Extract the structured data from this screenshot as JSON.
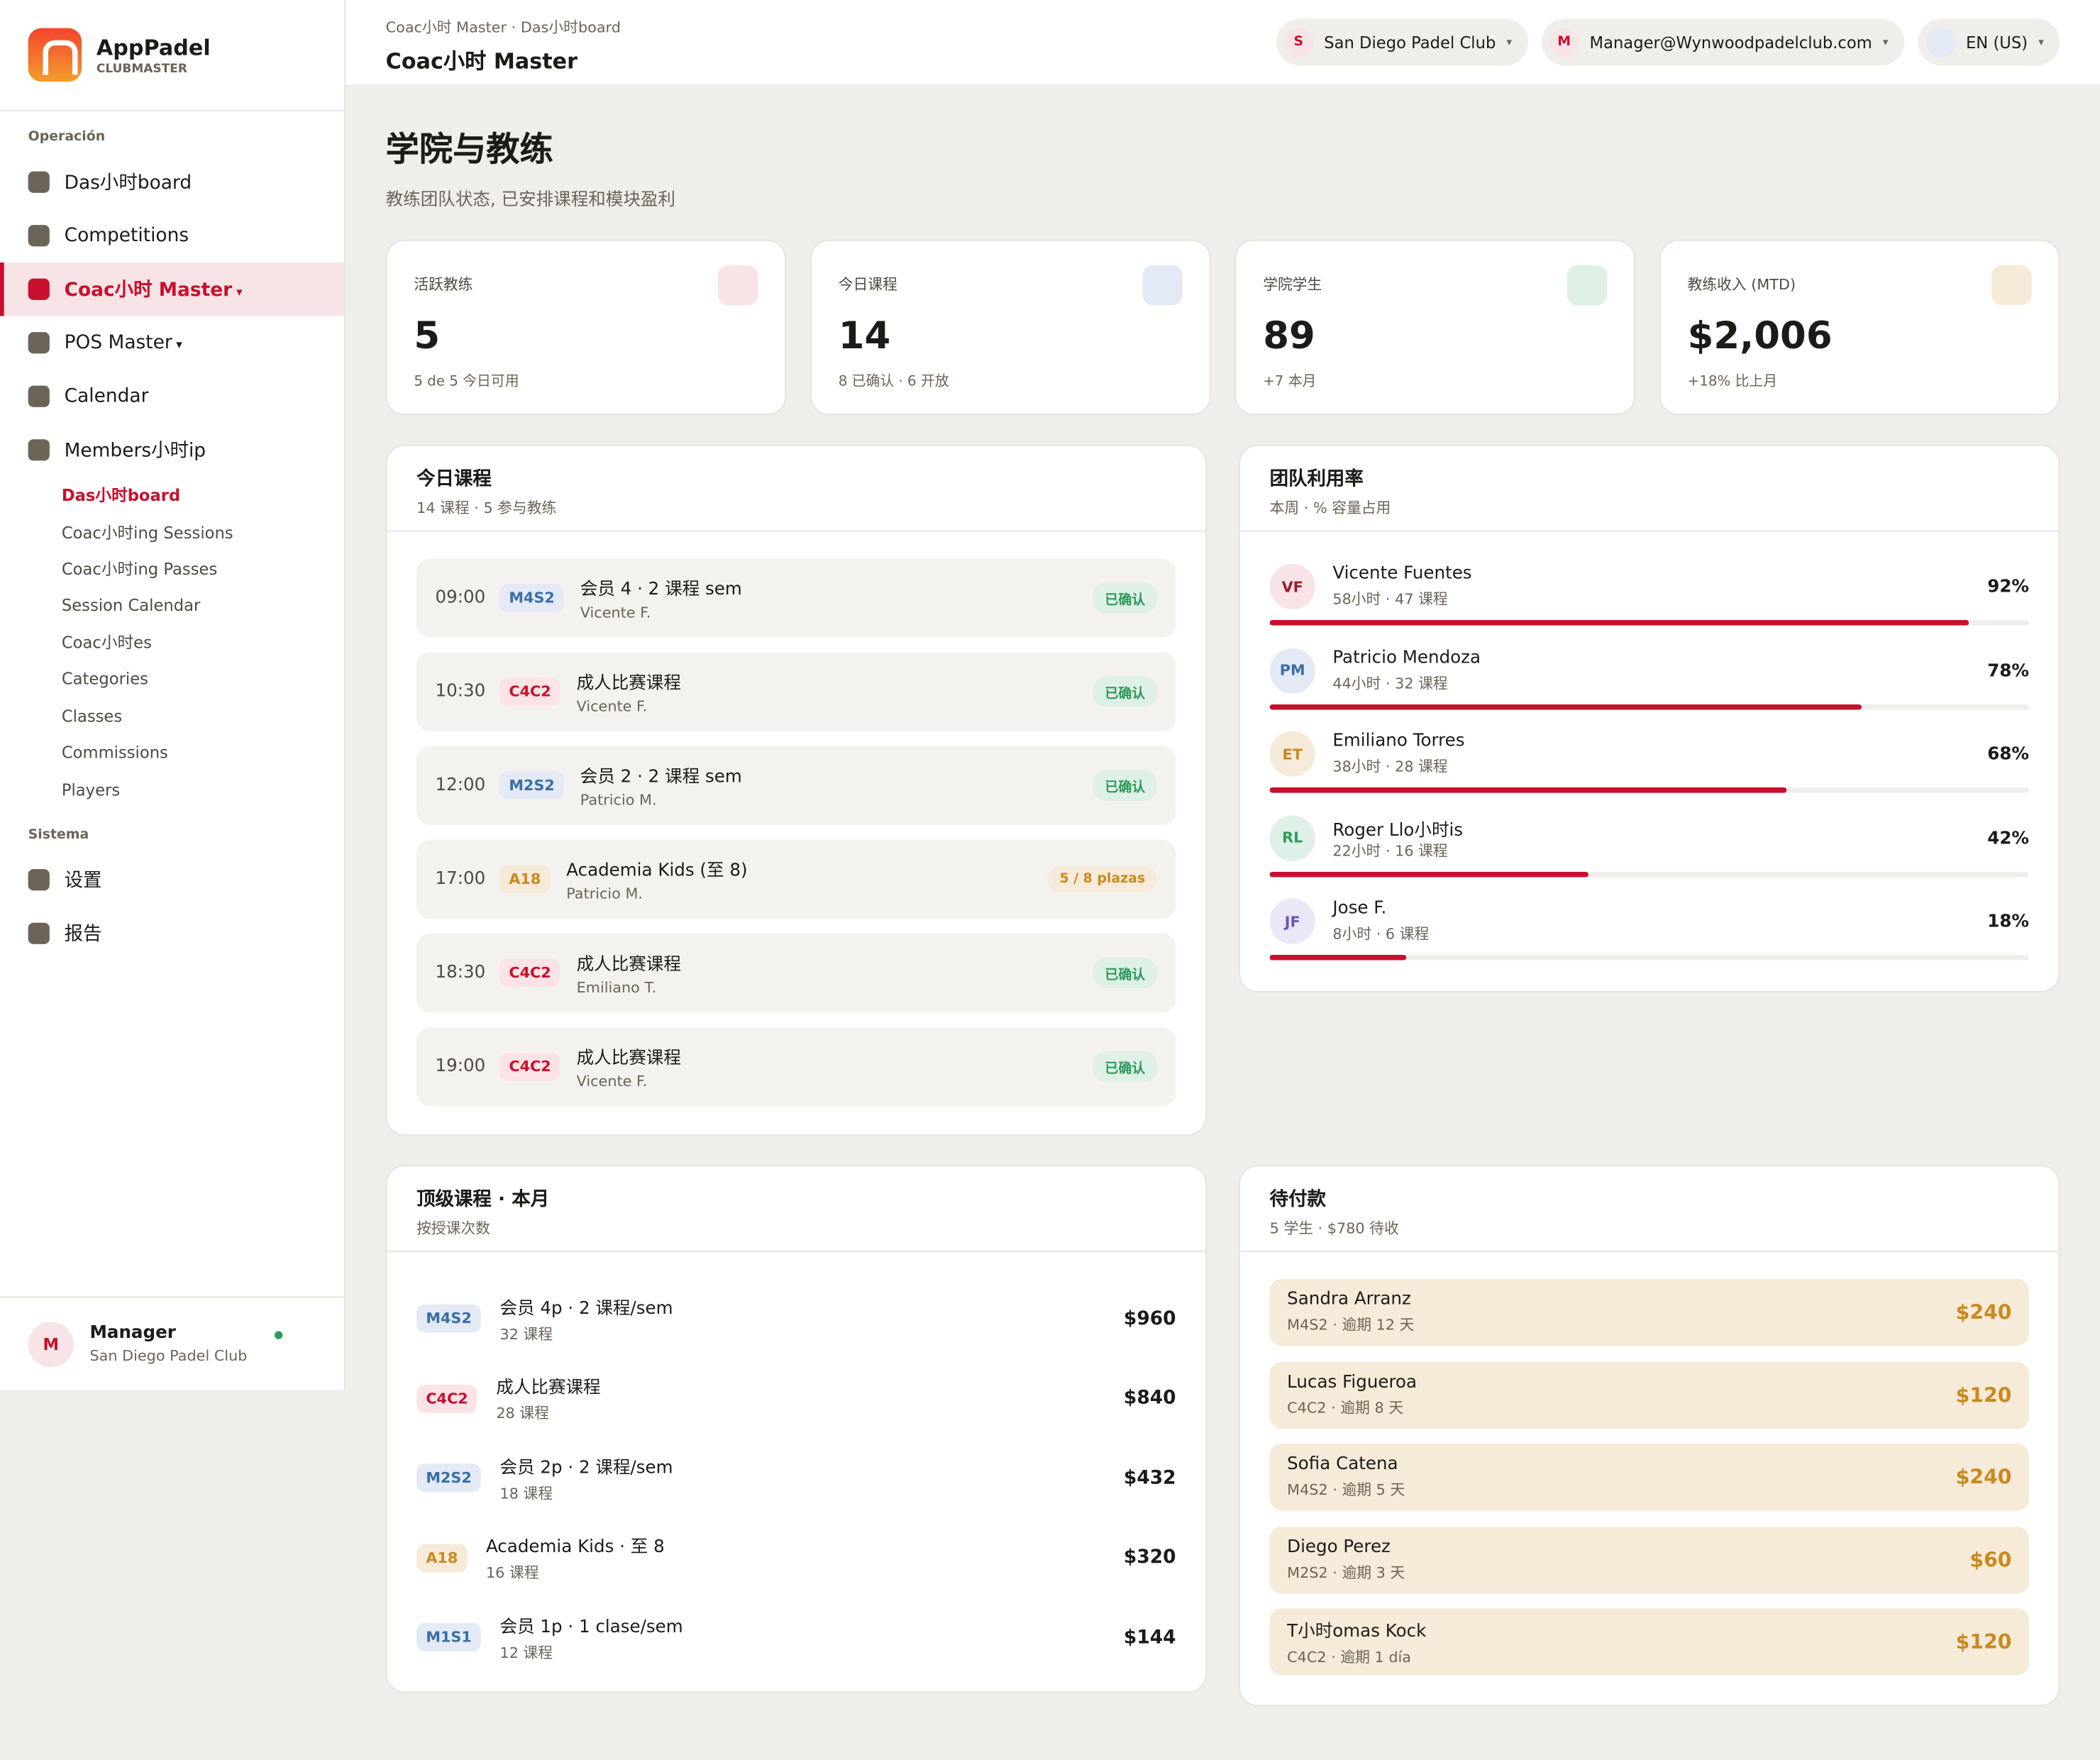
{
  "brand": {
    "name": "AppPadel",
    "tagline": "CLUBMASTER"
  },
  "header": {
    "breadcrumb": "Coac小时 Master · Das小时board",
    "title": "Coac小时 Master",
    "pills": [
      {
        "initial": "S",
        "label": "San Diego Padel Club"
      },
      {
        "initial": "M",
        "label": "Manager@Wynwoodpadelclub.com"
      },
      {
        "initial": "",
        "label": "EN (US)"
      }
    ]
  },
  "sidebar": {
    "sections": [
      {
        "title": "Operación",
        "items": [
          {
            "label": "Das小时board"
          },
          {
            "label": "Competitions"
          },
          {
            "label": "Coac小时 Master",
            "active": true,
            "caret": true
          },
          {
            "label": "POS Master",
            "caret": true
          },
          {
            "label": "Calendar"
          },
          {
            "label": "Members小时ip"
          }
        ],
        "subitems": [
          {
            "label": "Das小时board",
            "active": true
          },
          {
            "label": "Coac小时ing Sessions"
          },
          {
            "label": "Coac小时ing Passes"
          },
          {
            "label": "Session Calendar"
          },
          {
            "label": "Coac小时es"
          },
          {
            "label": "Categories"
          },
          {
            "label": "Classes"
          },
          {
            "label": "Commissions"
          },
          {
            "label": "Players"
          }
        ]
      },
      {
        "title": "Sistema",
        "items": [
          {
            "label": "设置"
          },
          {
            "label": "报告"
          }
        ],
        "subitems": []
      }
    ],
    "user": {
      "initial": "M",
      "name": "Manager",
      "club": "San Diego Padel Club"
    }
  },
  "page": {
    "title": "学院与教练",
    "subtitle": "教练团队状态, 已安排课程和模块盈利"
  },
  "stats": [
    {
      "label": "活跃教练",
      "value": "5",
      "note": "5 de 5 今日可用",
      "tint": "#f8e4e6"
    },
    {
      "label": "今日课程",
      "value": "14",
      "note": "8 已确认 · 6 开放",
      "tint": "#e3eaf5"
    },
    {
      "label": "学院学生",
      "value": "89",
      "note": "+7 本月",
      "tint": "#dff0e6"
    },
    {
      "label": "教练收入 (MTD)",
      "value": "$2,006",
      "note": "+18% 比上月",
      "tint": "#f6ead9"
    }
  ],
  "today": {
    "title": "今日课程",
    "subtitle": "14 课程 · 5 参与教练",
    "rows": [
      {
        "time": "09:00",
        "code": "M4S2",
        "name": "会员 4 · 2 课程 sem",
        "coach": "Vicente F.",
        "status": "已确认",
        "kind": "ok"
      },
      {
        "time": "10:30",
        "code": "C4C2",
        "name": "成人比赛课程",
        "coach": "Vicente F.",
        "status": "已确认",
        "kind": "ok"
      },
      {
        "time": "12:00",
        "code": "M2S2",
        "name": "会员 2 · 2 课程 sem",
        "coach": "Patricio M.",
        "status": "已确认",
        "kind": "ok"
      },
      {
        "time": "17:00",
        "code": "A18",
        "name": "Academia Kids (至 8)",
        "coach": "Patricio M.",
        "status": "5 / 8 plazas",
        "kind": "open"
      },
      {
        "time": "18:30",
        "code": "C4C2",
        "name": "成人比赛课程",
        "coach": "Emiliano T.",
        "status": "已确认",
        "kind": "ok"
      },
      {
        "time": "19:00",
        "code": "C4C2",
        "name": "成人比赛课程",
        "coach": "Vicente F.",
        "status": "已确认",
        "kind": "ok"
      }
    ]
  },
  "utilization": {
    "title": "团队利用率",
    "subtitle": "本周 · % 容量占用",
    "rows": [
      {
        "initials": "VF",
        "name": "Vicente Fuentes",
        "meta": "58小时 · 47 课程",
        "pct": {
          "value": 92,
          "label": "92%"
        },
        "tint": "#f8e4e6",
        "ink": "#9a1c2c"
      },
      {
        "initials": "PM",
        "name": "Patricio Mendoza",
        "meta": "44小时 · 32 课程",
        "pct": {
          "value": 78,
          "label": "78%"
        },
        "tint": "#e3eaf5",
        "ink": "#3b6ea5"
      },
      {
        "initials": "ET",
        "name": "Emiliano Torres",
        "meta": "38小时 · 28 课程",
        "pct": {
          "value": 68,
          "label": "68%"
        },
        "tint": "#f6ead9",
        "ink": "#c98a1e"
      },
      {
        "initials": "RL",
        "name": "Roger Llo小时is",
        "meta": "22小时 · 16 课程",
        "pct": {
          "value": 42,
          "label": "42%"
        },
        "tint": "#dff0e6",
        "ink": "#2f9a5e"
      },
      {
        "initials": "JF",
        "name": "Jose F.",
        "meta": "8小时 · 6 课程",
        "pct": {
          "value": 18,
          "label": "18%"
        },
        "tint": "#ebe7f6",
        "ink": "#6a55b0"
      }
    ]
  },
  "top": {
    "title": "顶级课程 · 本月",
    "subtitle": "按授课次数",
    "rows": [
      {
        "code": "M4S2",
        "name": "会员 4p · 2 课程/sem",
        "count": "32 课程",
        "amount": "$960"
      },
      {
        "code": "C4C2",
        "name": "成人比赛课程",
        "count": "28 课程",
        "amount": "$840"
      },
      {
        "code": "M2S2",
        "name": "会员 2p · 2 课程/sem",
        "count": "18 课程",
        "amount": "$432"
      },
      {
        "code": "A18",
        "name": "Academia Kids · 至 8",
        "count": "16 课程",
        "amount": "$320"
      },
      {
        "code": "M1S1",
        "name": "会员 1p · 1 clase/sem",
        "count": "12 课程",
        "amount": "$144"
      }
    ]
  },
  "pending": {
    "title": "待付款",
    "subtitle": "5 学生 · $780 待收",
    "rows": [
      {
        "name": "Sandra Arranz",
        "meta": "M4S2 · 逾期 12 天",
        "amount": "$240"
      },
      {
        "name": "Lucas Figueroa",
        "meta": "C4C2 · 逾期 8 天",
        "amount": "$120"
      },
      {
        "name": "Sofia Catena",
        "meta": "M4S2 · 逾期 5 天",
        "amount": "$240"
      },
      {
        "name": "Diego Perez",
        "meta": "M2S2 · 逾期 3 天",
        "amount": "$60"
      },
      {
        "name": "T小时omas Kock",
        "meta": "C4C2 · 逾期 1 día",
        "amount": "$120"
      }
    ]
  }
}
